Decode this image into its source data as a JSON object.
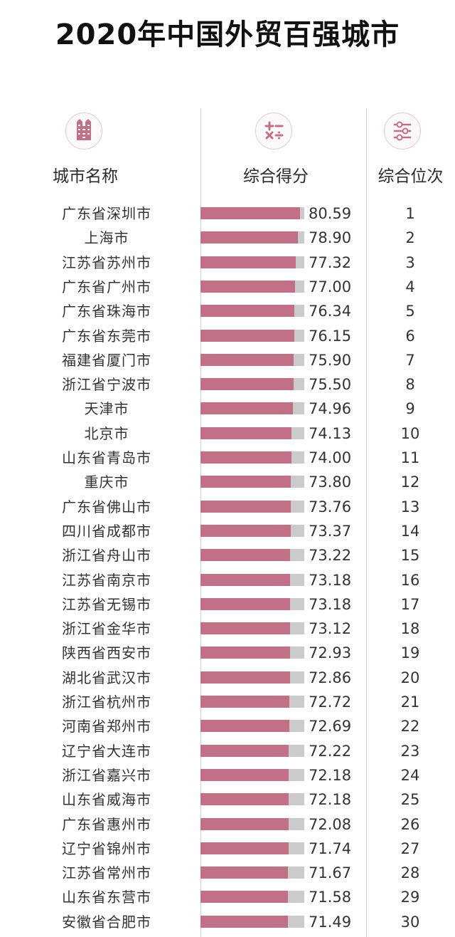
{
  "title": "2020年中国外贸百强城市",
  "columns": {
    "city": {
      "label": "城市名称",
      "icon": "building-icon"
    },
    "score": {
      "label": "综合得分",
      "icon": "math-operators-icon"
    },
    "rank": {
      "label": "综合位次",
      "icon": "sliders-icon"
    }
  },
  "colors": {
    "bar": "#c27088",
    "track": "#cbcbcb",
    "text": "#333333",
    "divider": "#cfcfcf"
  },
  "rows": [
    {
      "city": "广东省深圳市",
      "score": "80.59",
      "rank": "1"
    },
    {
      "city": "上海市",
      "score": "78.90",
      "rank": "2"
    },
    {
      "city": "江苏省苏州市",
      "score": "77.32",
      "rank": "3"
    },
    {
      "city": "广东省广州市",
      "score": "77.00",
      "rank": "4"
    },
    {
      "city": "广东省珠海市",
      "score": "76.34",
      "rank": "5"
    },
    {
      "city": "广东省东莞市",
      "score": "76.15",
      "rank": "6"
    },
    {
      "city": "福建省厦门市",
      "score": "75.90",
      "rank": "7"
    },
    {
      "city": "浙江省宁波市",
      "score": "75.50",
      "rank": "8"
    },
    {
      "city": "天津市",
      "score": "74.96",
      "rank": "9"
    },
    {
      "city": "北京市",
      "score": "74.13",
      "rank": "10"
    },
    {
      "city": "山东省青岛市",
      "score": "74.00",
      "rank": "11"
    },
    {
      "city": "重庆市",
      "score": "73.80",
      "rank": "12"
    },
    {
      "city": "广东省佛山市",
      "score": "73.76",
      "rank": "13"
    },
    {
      "city": "四川省成都市",
      "score": "73.37",
      "rank": "14"
    },
    {
      "city": "浙江省舟山市",
      "score": "73.22",
      "rank": "15"
    },
    {
      "city": "江苏省南京市",
      "score": "73.18",
      "rank": "16"
    },
    {
      "city": "江苏省无锡市",
      "score": "73.18",
      "rank": "17"
    },
    {
      "city": "浙江省金华市",
      "score": "73.12",
      "rank": "18"
    },
    {
      "city": "陕西省西安市",
      "score": "72.93",
      "rank": "19"
    },
    {
      "city": "湖北省武汉市",
      "score": "72.86",
      "rank": "20"
    },
    {
      "city": "浙江省杭州市",
      "score": "72.72",
      "rank": "21"
    },
    {
      "city": "河南省郑州市",
      "score": "72.69",
      "rank": "22"
    },
    {
      "city": "辽宁省大连市",
      "score": "72.22",
      "rank": "23"
    },
    {
      "city": "浙江省嘉兴市",
      "score": "72.18",
      "rank": "24"
    },
    {
      "city": "山东省威海市",
      "score": "72.18",
      "rank": "25"
    },
    {
      "city": "广东省惠州市",
      "score": "72.08",
      "rank": "26"
    },
    {
      "city": "辽宁省锦州市",
      "score": "71.74",
      "rank": "27"
    },
    {
      "city": "江苏省常州市",
      "score": "71.67",
      "rank": "28"
    },
    {
      "city": "山东省东营市",
      "score": "71.58",
      "rank": "29"
    },
    {
      "city": "安徽省合肥市",
      "score": "71.49",
      "rank": "30"
    }
  ],
  "chart_data": {
    "type": "bar",
    "orientation": "horizontal",
    "title": "2020年中国外贸百强城市",
    "xlabel": "综合得分",
    "ylabel": "城市名称",
    "grid": false,
    "legend": null,
    "categories": [
      "广东省深圳市",
      "上海市",
      "江苏省苏州市",
      "广东省广州市",
      "广东省珠海市",
      "广东省东莞市",
      "福建省厦门市",
      "浙江省宁波市",
      "天津市",
      "北京市",
      "山东省青岛市",
      "重庆市",
      "广东省佛山市",
      "四川省成都市",
      "浙江省舟山市",
      "江苏省南京市",
      "江苏省无锡市",
      "浙江省金华市",
      "陕西省西安市",
      "湖北省武汉市",
      "浙江省杭州市",
      "河南省郑州市",
      "辽宁省大连市",
      "浙江省嘉兴市",
      "山东省威海市",
      "广东省惠州市",
      "辽宁省锦州市",
      "江苏省常州市",
      "山东省东营市",
      "安徽省合肥市"
    ],
    "series": [
      {
        "name": "综合得分",
        "values": [
          80.59,
          78.9,
          77.32,
          77.0,
          76.34,
          76.15,
          75.9,
          75.5,
          74.96,
          74.13,
          74.0,
          73.8,
          73.76,
          73.37,
          73.22,
          73.18,
          73.18,
          73.12,
          72.93,
          72.86,
          72.72,
          72.69,
          72.22,
          72.18,
          72.18,
          72.08,
          71.74,
          71.67,
          71.58,
          71.49
        ]
      },
      {
        "name": "综合位次",
        "values": [
          1,
          2,
          3,
          4,
          5,
          6,
          7,
          8,
          9,
          10,
          11,
          12,
          13,
          14,
          15,
          16,
          17,
          18,
          19,
          20,
          21,
          22,
          23,
          24,
          25,
          26,
          27,
          28,
          29,
          30
        ]
      }
    ]
  }
}
